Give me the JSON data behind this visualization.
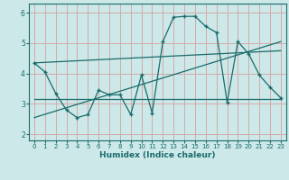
{
  "title": "",
  "xlabel": "Humidex (Indice chaleur)",
  "ylabel": "",
  "bg_color": "#cce8e8",
  "line_color": "#1a6b6b",
  "grid_color": "#d4aaaa",
  "xlim": [
    -0.5,
    23.5
  ],
  "ylim": [
    1.8,
    6.3
  ],
  "xticks": [
    0,
    1,
    2,
    3,
    4,
    5,
    6,
    7,
    8,
    9,
    10,
    11,
    12,
    13,
    14,
    15,
    16,
    17,
    18,
    19,
    20,
    21,
    22,
    23
  ],
  "yticks": [
    2,
    3,
    4,
    5,
    6
  ],
  "line1_x": [
    0,
    1,
    2,
    3,
    4,
    5,
    6,
    7,
    8,
    9,
    10,
    11,
    12,
    13,
    14,
    15,
    16,
    17,
    18,
    19,
    20,
    21,
    22,
    23
  ],
  "line1_y": [
    4.35,
    4.05,
    3.35,
    2.8,
    2.55,
    2.65,
    3.45,
    3.3,
    3.3,
    2.65,
    3.95,
    2.7,
    5.05,
    5.85,
    5.88,
    5.88,
    5.55,
    5.35,
    3.05,
    5.05,
    4.65,
    3.95,
    3.55,
    3.2
  ],
  "line2_x": [
    0,
    23
  ],
  "line2_y": [
    3.15,
    3.15
  ],
  "line3_x": [
    0,
    23
  ],
  "line3_y": [
    2.55,
    5.05
  ],
  "line4_x": [
    0,
    23
  ],
  "line4_y": [
    4.35,
    4.75
  ]
}
